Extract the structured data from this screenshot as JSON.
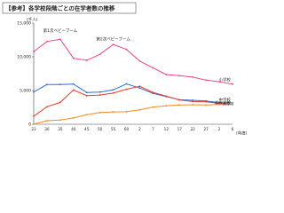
{
  "chart_data": {
    "type": "line",
    "title": "【参考】各学校段階ごとの在学者数の推移",
    "y_unit": "(千人)",
    "x_unit": "(年度)",
    "categories": [
      "23",
      "30",
      "35",
      "40",
      "45",
      "50",
      "55",
      "60",
      "2",
      "7",
      "12",
      "17",
      "22",
      "27",
      "2",
      "6"
    ],
    "ylim": [
      0,
      15000
    ],
    "yticks": [
      0,
      {
        "value": 5000,
        "label": "5,000"
      },
      {
        "value": 10000,
        "label": "10,000"
      },
      {
        "value": 15000,
        "label": "15,000"
      }
    ],
    "grid": false,
    "series": [
      {
        "name": "小学校",
        "color": "#e2488f",
        "values": [
          10775,
          12267,
          12591,
          9776,
          9493,
          10365,
          11827,
          11095,
          9373,
          8370,
          7366,
          7197,
          6993,
          6543,
          6301,
          5943
        ]
      },
      {
        "name": "中学校",
        "color": "#2f6fd0",
        "values": [
          4793,
          5884,
          5900,
          5957,
          4717,
          4762,
          5094,
          5990,
          5369,
          4570,
          4104,
          3626,
          3558,
          3465,
          3211,
          3154
        ]
      },
      {
        "name": "高等学校",
        "color": "#e03c31",
        "values": [
          1203,
          2592,
          3239,
          5074,
          4232,
          4333,
          4622,
          5178,
          5623,
          4725,
          4165,
          3605,
          3369,
          3319,
          3092,
          2919
        ]
      },
      {
        "name": "大学",
        "color": "#f08a24",
        "values": [
          12,
          524,
          626,
          938,
          1407,
          1734,
          1835,
          1849,
          2133,
          2547,
          2740,
          2865,
          2888,
          2860,
          2915,
          2949
        ]
      }
    ],
    "annotations": [
      "第1次ベビーブーム",
      "第2次ベビーブーム"
    ]
  }
}
